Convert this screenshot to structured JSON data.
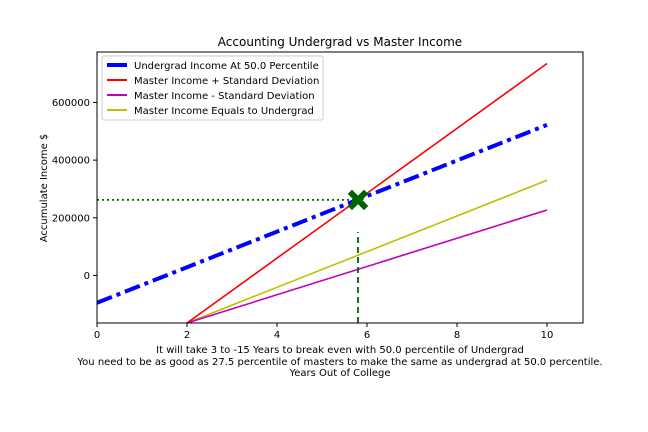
{
  "chart_data": {
    "type": "line",
    "title": "Accounting Undergrad vs Master Income",
    "ylabel": "Accumulate Income $",
    "xlabel_lines": [
      "It will take 3 to -15 Years to break even with 50.0 percentile of Undergrad",
      "You need to be as good as 27.5 percentile of masters to make the same as undergrad at 50.0 percentile.",
      "Years Out of College"
    ],
    "xlim": [
      0,
      10.8
    ],
    "ylim": [
      -165000,
      775000
    ],
    "xticks": [
      0,
      2,
      4,
      6,
      8,
      10
    ],
    "yticks": [
      0,
      200000,
      400000,
      600000
    ],
    "xtick_labels": [
      "0",
      "2",
      "4",
      "6",
      "8",
      "10"
    ],
    "ytick_labels": [
      "0",
      "200000",
      "400000",
      "600000"
    ],
    "grid": false,
    "legend_position": "top-left",
    "series": [
      {
        "name": "Undergrad Income At 50.0 Percentile",
        "color": "#0000ff",
        "style": "dashdot",
        "x": [
          0,
          10
        ],
        "y": [
          -95000,
          522000
        ]
      },
      {
        "name": "Master Income + Standard Deviation",
        "color": "#ff0000",
        "style": "solid",
        "x": [
          2,
          10
        ],
        "y": [
          -165000,
          735000
        ]
      },
      {
        "name": "Master Income - Standard Deviation",
        "color": "#bf00bf",
        "style": "solid",
        "x": [
          2,
          10
        ],
        "y": [
          -165000,
          227000
        ]
      },
      {
        "name": "Master Income Equals to Undergrad",
        "color": "#bfbf00",
        "style": "solid",
        "x": [
          2,
          10
        ],
        "y": [
          -165000,
          330000
        ]
      }
    ],
    "reference_lines": [
      {
        "orientation": "horizontal",
        "color": "#006400",
        "style": "dotted",
        "y": 262000,
        "x_range": [
          0,
          5.8
        ]
      },
      {
        "orientation": "vertical",
        "color": "#006400",
        "style": "dashed",
        "x": 5.8,
        "y_range": [
          -165000,
          150000
        ]
      }
    ],
    "markers": [
      {
        "shape": "X",
        "color": "#006400",
        "x": 5.8,
        "y": 262000
      }
    ]
  }
}
